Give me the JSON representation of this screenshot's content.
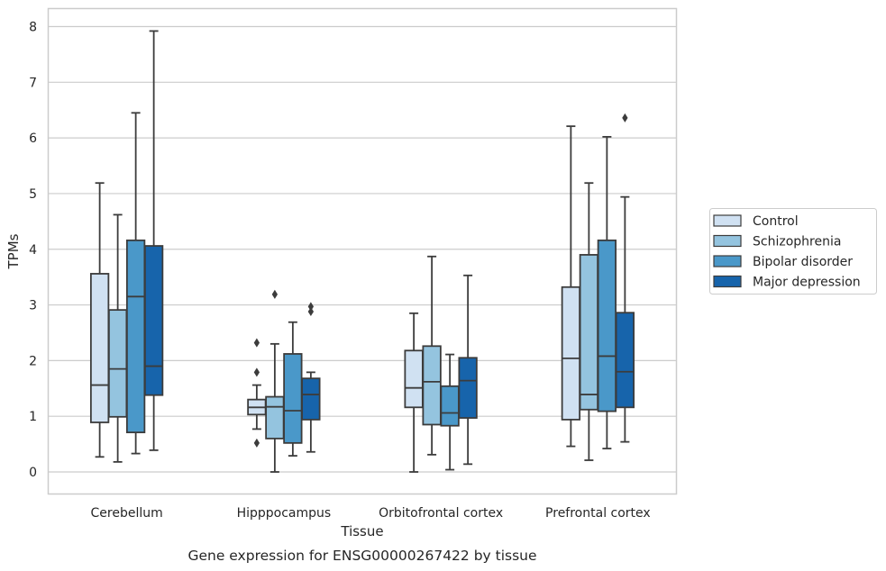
{
  "chart_data": {
    "type": "box",
    "xlabel": "Tissue",
    "ylabel": "TPMs",
    "caption": "Gene expression for ENSG00000267422 by tissue",
    "ylim": [
      -0.38,
      8.3
    ],
    "yticks": [
      "0",
      "1",
      "2",
      "3",
      "4",
      "5",
      "6",
      "7",
      "8"
    ],
    "categories": [
      "Cerebellum",
      "Hipppocampus",
      "Orbitofrontal cortex",
      "Prefrontal cortex"
    ],
    "grid": "horizontal",
    "legend_position": "right",
    "series": [
      {
        "name": "Control",
        "color": "#d0e1f2",
        "boxes": [
          {
            "whisker_low": 0.27,
            "q1": 0.89,
            "median": 1.56,
            "q3": 3.56,
            "whisker_high": 5.19,
            "outliers": []
          },
          {
            "whisker_low": 0.77,
            "q1": 1.03,
            "median": 1.16,
            "q3": 1.3,
            "whisker_high": 1.56,
            "outliers": [
              0.52,
              1.79,
              2.32
            ]
          },
          {
            "whisker_low": 0.0,
            "q1": 1.16,
            "median": 1.51,
            "q3": 2.18,
            "whisker_high": 2.85,
            "outliers": []
          },
          {
            "whisker_low": 0.46,
            "q1": 0.94,
            "median": 2.04,
            "q3": 3.32,
            "whisker_high": 6.21,
            "outliers": []
          }
        ]
      },
      {
        "name": "Schizophrenia",
        "color": "#94c4df",
        "boxes": [
          {
            "whisker_low": 0.18,
            "q1": 0.99,
            "median": 1.85,
            "q3": 2.91,
            "whisker_high": 4.62,
            "outliers": []
          },
          {
            "whisker_low": 0.0,
            "q1": 0.6,
            "median": 1.17,
            "q3": 1.35,
            "whisker_high": 2.3,
            "outliers": [
              3.19
            ]
          },
          {
            "whisker_low": 0.31,
            "q1": 0.85,
            "median": 1.62,
            "q3": 2.26,
            "whisker_high": 3.87,
            "outliers": []
          },
          {
            "whisker_low": 0.21,
            "q1": 1.12,
            "median": 1.39,
            "q3": 3.9,
            "whisker_high": 5.19,
            "outliers": []
          }
        ]
      },
      {
        "name": "Bipolar disorder",
        "color": "#4a98c9",
        "boxes": [
          {
            "whisker_low": 0.33,
            "q1": 0.71,
            "median": 3.15,
            "q3": 4.16,
            "whisker_high": 6.45,
            "outliers": []
          },
          {
            "whisker_low": 0.29,
            "q1": 0.52,
            "median": 1.1,
            "q3": 2.12,
            "whisker_high": 2.69,
            "outliers": []
          },
          {
            "whisker_low": 0.04,
            "q1": 0.83,
            "median": 1.06,
            "q3": 1.54,
            "whisker_high": 2.11,
            "outliers": []
          },
          {
            "whisker_low": 0.42,
            "q1": 1.09,
            "median": 2.08,
            "q3": 4.16,
            "whisker_high": 6.02,
            "outliers": []
          }
        ]
      },
      {
        "name": "Major depression",
        "color": "#1764ab",
        "boxes": [
          {
            "whisker_low": 0.39,
            "q1": 1.38,
            "median": 1.9,
            "q3": 4.06,
            "whisker_high": 7.92,
            "outliers": []
          },
          {
            "whisker_low": 0.36,
            "q1": 0.94,
            "median": 1.39,
            "q3": 1.68,
            "whisker_high": 1.79,
            "outliers": [
              2.88,
              2.97
            ]
          },
          {
            "whisker_low": 0.14,
            "q1": 0.97,
            "median": 1.64,
            "q3": 2.05,
            "whisker_high": 3.53,
            "outliers": []
          },
          {
            "whisker_low": 0.54,
            "q1": 1.16,
            "median": 1.8,
            "q3": 2.86,
            "whisker_high": 4.94,
            "outliers": [
              6.36
            ]
          }
        ]
      }
    ]
  },
  "colors": {
    "grid": "#cccccc",
    "frame": "#cccccc",
    "stroke": "#3c3c3c",
    "text": "#262626"
  }
}
